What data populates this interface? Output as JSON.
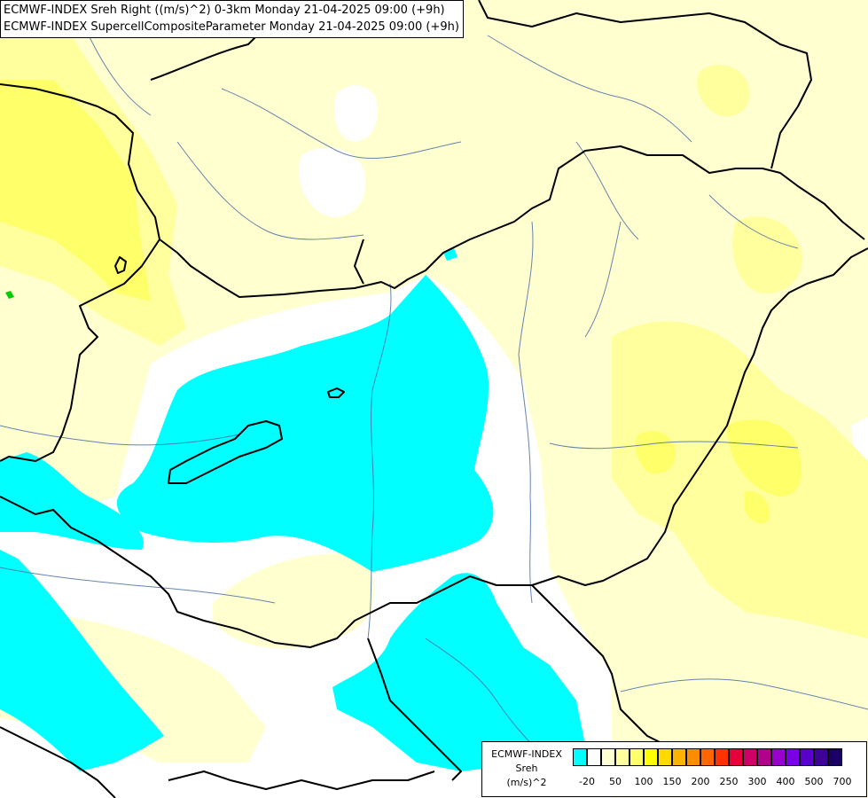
{
  "header": {
    "title_line1": "ECMWF-INDEX Sreh Right ((m/s)^2) 0-3km Monday 21-04-2025 09:00 (+9h)",
    "title_line2": "ECMWF-INDEX SupercellCompositeParameter Monday 21-04-2025 09:00 (+9h)"
  },
  "legend": {
    "source": "ECMWF-INDEX",
    "variable": "Sreh",
    "unit": "(m/s)^2",
    "colors": [
      "#00ffff",
      "#ffffff",
      "#ffffd4",
      "#ffff9e",
      "#ffff6a",
      "#ffff00",
      "#ffd900",
      "#ffb300",
      "#ff8c00",
      "#ff6600",
      "#ff3300",
      "#e6003c",
      "#cc0066",
      "#b3008c",
      "#9900cc",
      "#7a00e6",
      "#5a00cc",
      "#3d0099",
      "#1a0066"
    ],
    "ticks": [
      "-20",
      "50",
      "100",
      "150",
      "200",
      "250",
      "300",
      "400",
      "500",
      "700"
    ]
  }
}
